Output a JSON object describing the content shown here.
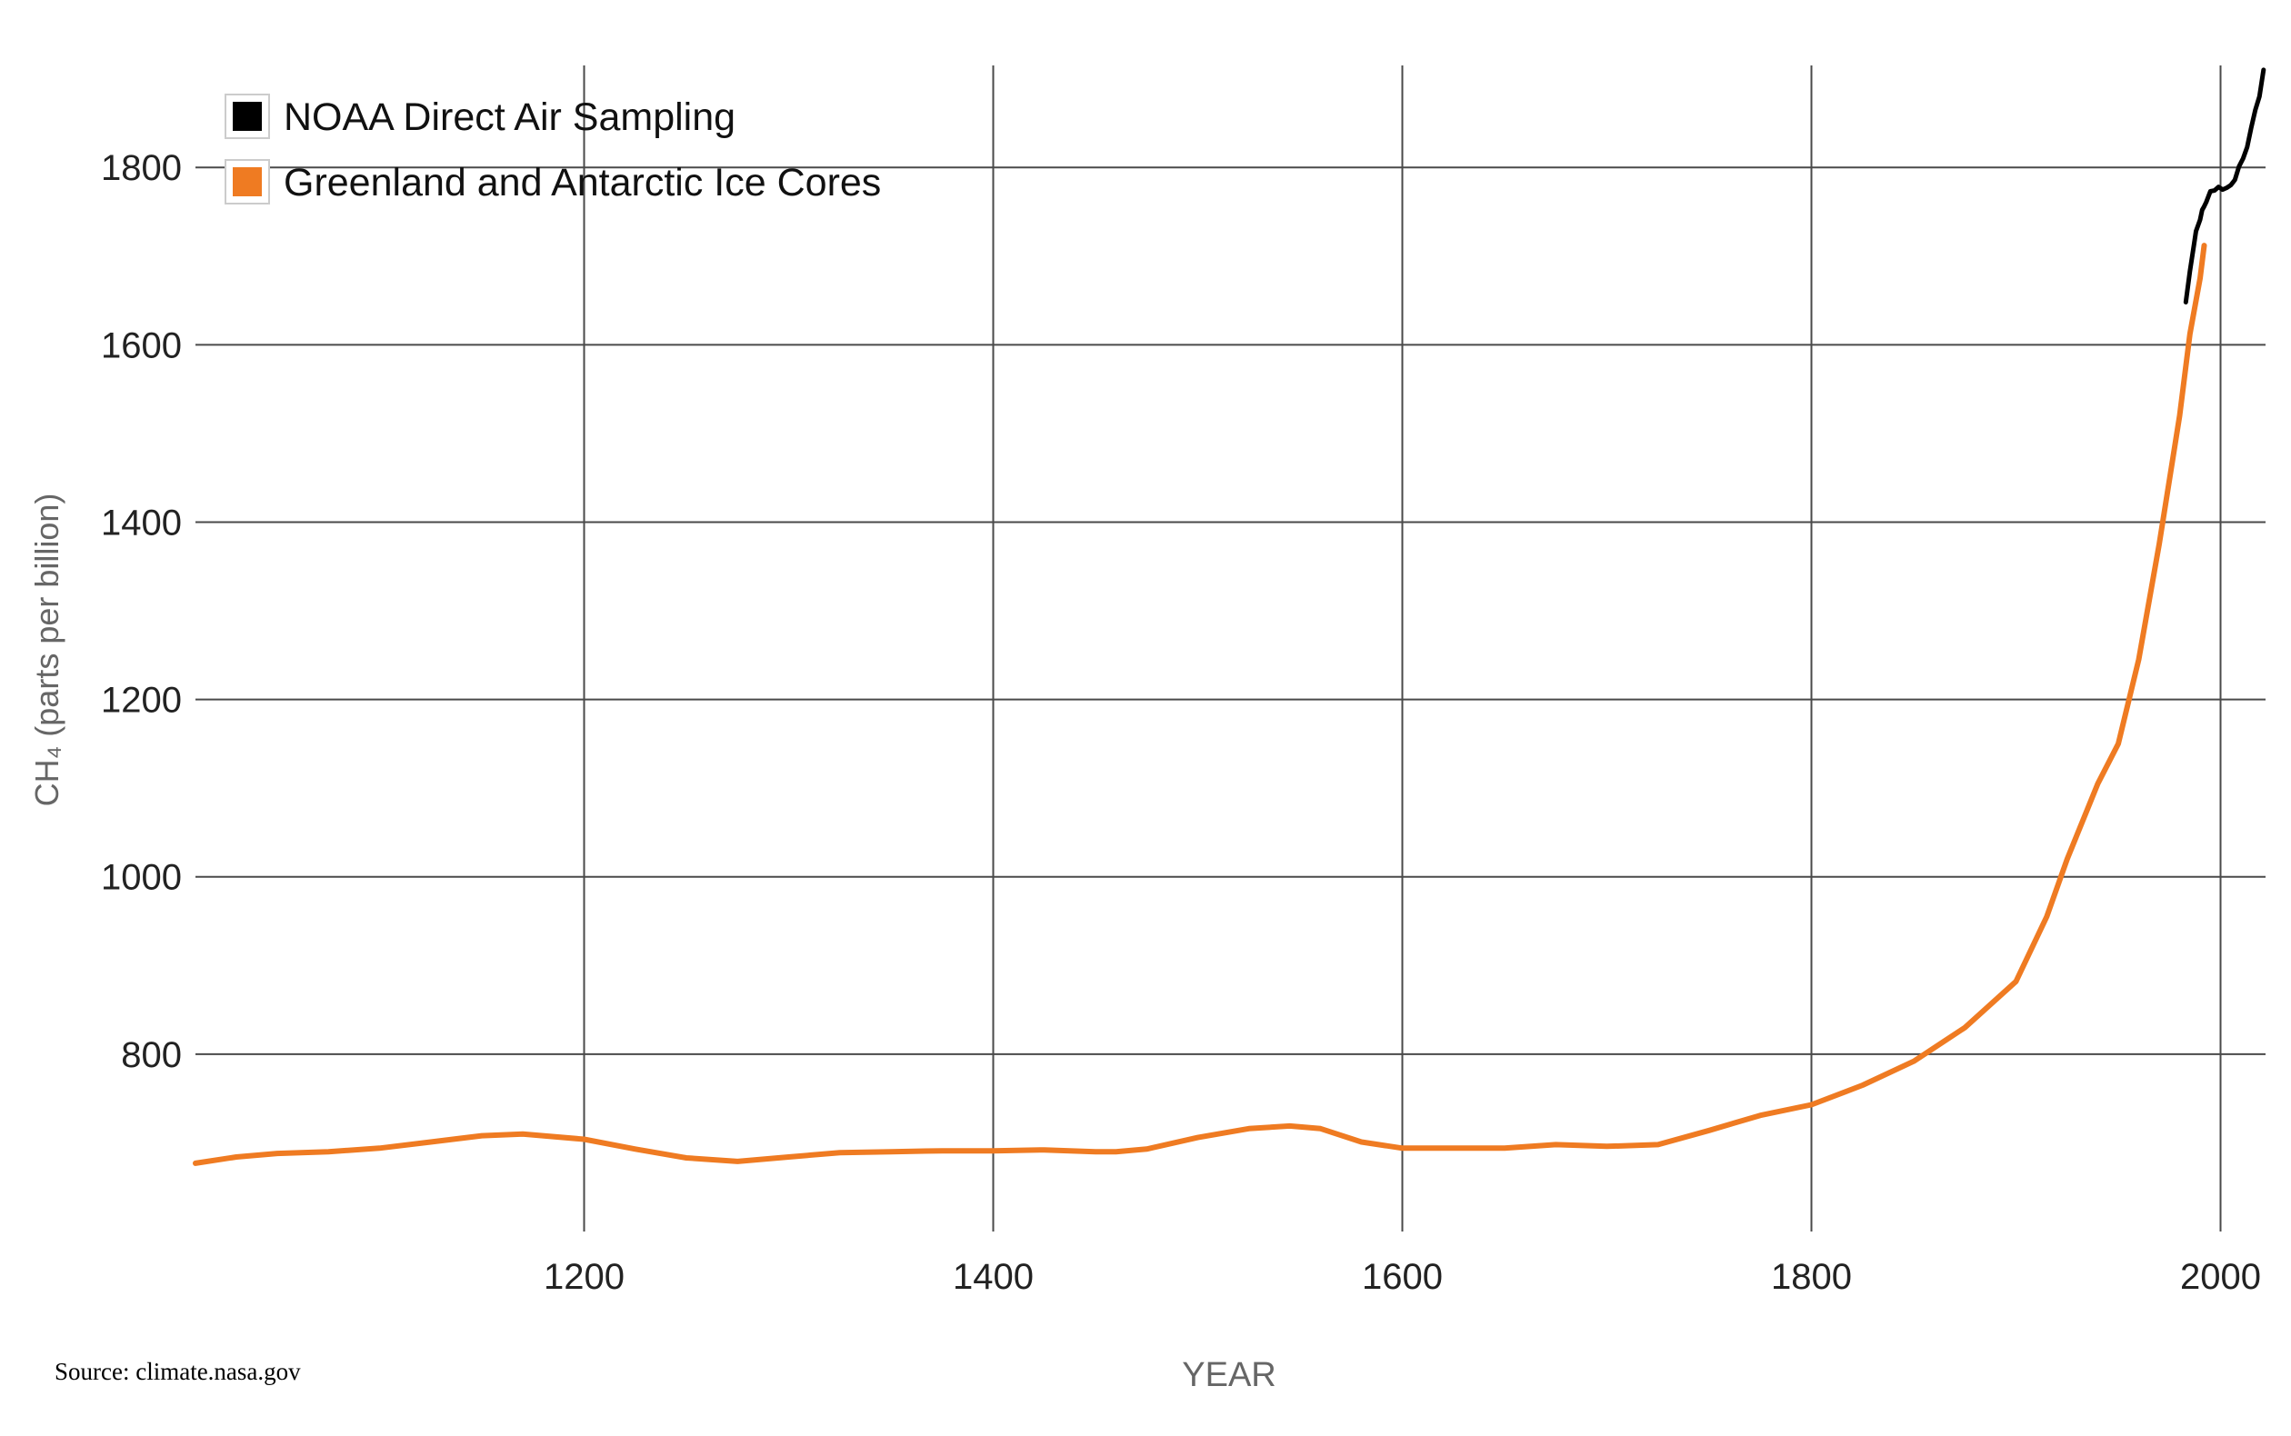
{
  "chart_data": {
    "type": "line",
    "title": "",
    "xlabel": "YEAR",
    "ylabel": "CH₄ (parts per billion)",
    "xlim": [
      1010,
      2022
    ],
    "ylim": [
      600,
      1915
    ],
    "x_ticks": [
      1200,
      1400,
      1600,
      1800,
      2000
    ],
    "y_ticks": [
      800,
      1000,
      1200,
      1400,
      1600,
      1800
    ],
    "x_tick_labels": [
      "1200",
      "1400",
      "1600",
      "1800",
      "2000"
    ],
    "y_tick_labels": [
      "800",
      "1000",
      "1200",
      "1400",
      "1600",
      "1800"
    ],
    "grid": true,
    "legend_position": "top-left",
    "series": [
      {
        "name": "NOAA Direct Air Sampling",
        "color": "#000000",
        "x": [
          1983,
          1985,
          1987,
          1988,
          1990,
          1991,
          1992,
          1993,
          1995,
          1997,
          1999,
          2001,
          2003,
          2005,
          2007,
          2009,
          2011,
          2013,
          2015,
          2017,
          2019,
          2021
        ],
        "y": [
          1648,
          1683,
          1713,
          1728,
          1741,
          1752,
          1756,
          1761,
          1773,
          1774,
          1778,
          1775,
          1777,
          1780,
          1786,
          1801,
          1810,
          1823,
          1845,
          1865,
          1880,
          1910
        ]
      },
      {
        "name": "Greenland and Antarctic Ice Cores",
        "color": "#ef7b22",
        "x": [
          1010,
          1030,
          1050,
          1075,
          1100,
          1125,
          1150,
          1170,
          1200,
          1225,
          1250,
          1275,
          1300,
          1325,
          1350,
          1375,
          1400,
          1425,
          1450,
          1460,
          1475,
          1500,
          1525,
          1545,
          1560,
          1580,
          1600,
          1625,
          1650,
          1675,
          1700,
          1725,
          1750,
          1775,
          1800,
          1825,
          1850,
          1875,
          1900,
          1915,
          1925,
          1940,
          1950,
          1960,
          1970,
          1980,
          1985,
          1990,
          1992
        ],
        "y": [
          677,
          684,
          688,
          690,
          694,
          701,
          708,
          710,
          704,
          693,
          683,
          679,
          684,
          689,
          690,
          691,
          691,
          692,
          690,
          690,
          693,
          706,
          716,
          719,
          716,
          701,
          694,
          694,
          694,
          698,
          696,
          698,
          714,
          731,
          743,
          765,
          792,
          830,
          882,
          955,
          1020,
          1105,
          1150,
          1245,
          1375,
          1520,
          1612,
          1675,
          1712
        ]
      }
    ]
  },
  "source_note": "Source: climate.nasa.gov"
}
